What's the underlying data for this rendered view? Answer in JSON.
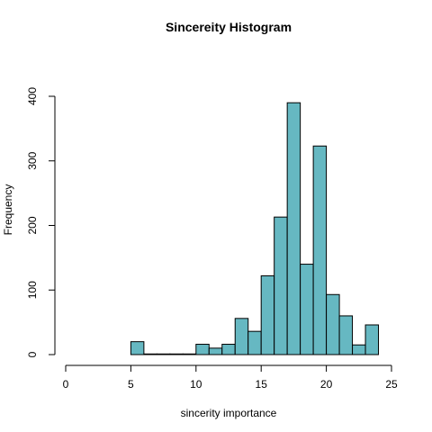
{
  "chart_data": {
    "type": "bar",
    "title": "Sincereity Histogram",
    "xlabel": "sincerity importance",
    "ylabel": "Frequency",
    "bar_color": "#66b8c2",
    "xlim": [
      0,
      25
    ],
    "ylim": [
      0,
      400
    ],
    "x_ticks": [
      0,
      5,
      10,
      15,
      20,
      25
    ],
    "y_ticks": [
      0,
      100,
      200,
      300,
      400
    ],
    "bins": [
      {
        "start": 5,
        "end": 6,
        "count": 20
      },
      {
        "start": 6,
        "end": 7,
        "count": 1
      },
      {
        "start": 7,
        "end": 8,
        "count": 1
      },
      {
        "start": 8,
        "end": 9,
        "count": 1
      },
      {
        "start": 9,
        "end": 10,
        "count": 1
      },
      {
        "start": 10,
        "end": 11,
        "count": 16
      },
      {
        "start": 11,
        "end": 12,
        "count": 10
      },
      {
        "start": 12,
        "end": 13,
        "count": 16
      },
      {
        "start": 13,
        "end": 14,
        "count": 56
      },
      {
        "start": 14,
        "end": 15,
        "count": 36
      },
      {
        "start": 15,
        "end": 16,
        "count": 122
      },
      {
        "start": 16,
        "end": 17,
        "count": 213
      },
      {
        "start": 17,
        "end": 18,
        "count": 390
      },
      {
        "start": 18,
        "end": 19,
        "count": 140
      },
      {
        "start": 19,
        "end": 20,
        "count": 323
      },
      {
        "start": 20,
        "end": 21,
        "count": 93
      },
      {
        "start": 21,
        "end": 22,
        "count": 60
      },
      {
        "start": 22,
        "end": 23,
        "count": 15
      },
      {
        "start": 23,
        "end": 24,
        "count": 46
      }
    ]
  }
}
